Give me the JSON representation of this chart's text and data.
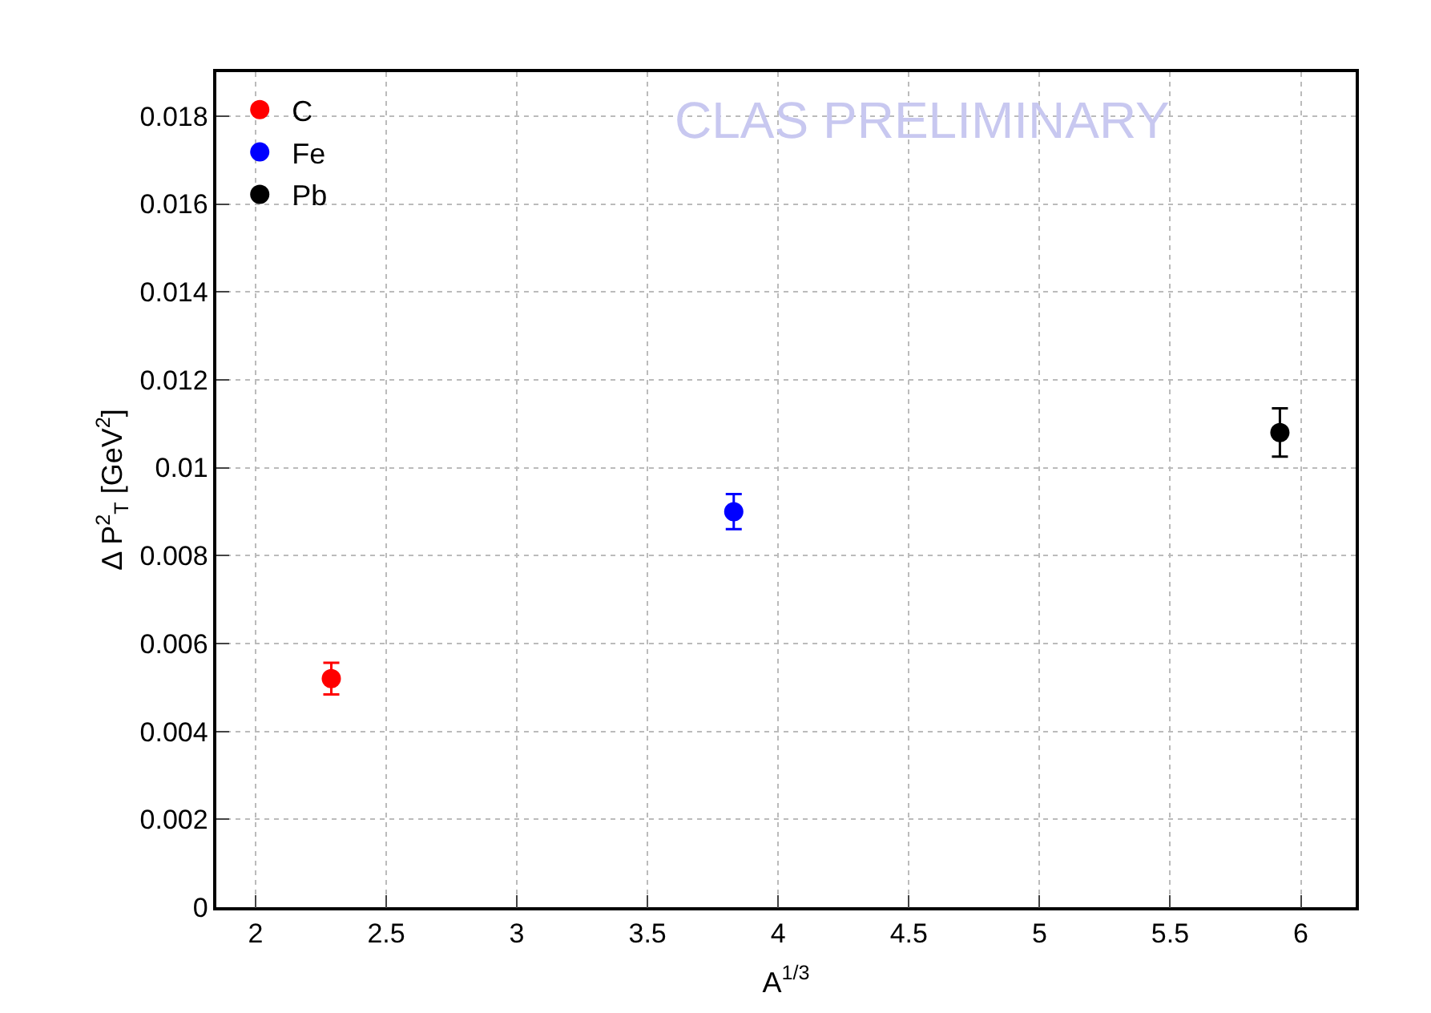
{
  "chart_data": {
    "type": "scatter",
    "xlabel": "A$^{1/3}$",
    "ylabel": "Δ P$^{2}$$_{T}$ [GeV$^{2}$]",
    "series": [
      {
        "name": "C",
        "color": "#ff0000",
        "x": [
          2.29
        ],
        "values": [
          0.0052
        ],
        "errors": [
          0.00036
        ]
      },
      {
        "name": "Fe",
        "color": "#0000ff",
        "x": [
          3.83
        ],
        "values": [
          0.009
        ],
        "errors": [
          0.0004
        ]
      },
      {
        "name": "Pb",
        "color": "#000000",
        "x": [
          5.92
        ],
        "values": [
          0.0108
        ],
        "errors": [
          0.00055
        ]
      }
    ],
    "annotations": [
      "CLAS PRELIMINARY"
    ],
    "xlim": [
      1.85,
      6.21
    ],
    "xticks": [
      2,
      2.5,
      3,
      3.5,
      4,
      4.5,
      5,
      5.5,
      6
    ],
    "ylim": [
      0,
      0.019
    ],
    "yticks": [
      0,
      0.002,
      0.004,
      0.006,
      0.008,
      0.01,
      0.012,
      0.014,
      0.016,
      0.018
    ],
    "grid": true,
    "legend": "top left",
    "marker": "circle"
  }
}
